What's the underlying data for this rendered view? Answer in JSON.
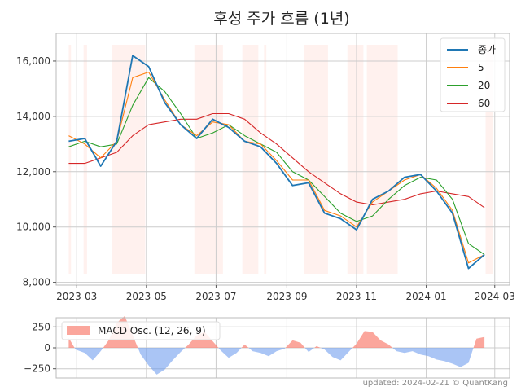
{
  "chart_data": [
    {
      "type": "line",
      "title": "후성 주가 흐름 (1년)",
      "ylim": [
        7900,
        17000
      ],
      "xlim": [
        "2023-02-11",
        "2024-03-14"
      ],
      "yticks": [
        8000,
        10000,
        12000,
        14000,
        16000
      ],
      "ytick_labels": [
        "8,000",
        "10,000",
        "12,000",
        "14,000",
        "16,000"
      ],
      "xtick_labels": [
        {
          "date": "2023-03-01",
          "label": "2023-03"
        },
        {
          "date": "2023-05-01",
          "label": "2023-05"
        },
        {
          "date": "2023-07-01",
          "label": "2023-07"
        },
        {
          "date": "2023-09-01",
          "label": "2023-09"
        },
        {
          "date": "2023-11-01",
          "label": "2023-11"
        },
        {
          "date": "2024-01-01",
          "label": "2024-01"
        },
        {
          "date": "2024-03-01",
          "label": "2024-03"
        }
      ],
      "grid": true,
      "legend_position": "top-right",
      "shaded_periods": [
        [
          "2023-02-22",
          "2023-02-24"
        ],
        [
          "2023-03-07",
          "2023-03-10"
        ],
        [
          "2023-04-01",
          "2023-04-30"
        ],
        [
          "2023-06-12",
          "2023-07-07"
        ],
        [
          "2023-07-24",
          "2023-08-07"
        ],
        [
          "2023-08-12",
          "2023-08-14"
        ],
        [
          "2023-09-16",
          "2023-10-07"
        ],
        [
          "2023-10-24",
          "2023-11-07"
        ],
        [
          "2023-11-10",
          "2023-12-07"
        ],
        [
          "2024-02-22",
          "2024-02-28"
        ]
      ],
      "shade_color": "#fff1ee",
      "dates": [
        "2023-02-22",
        "2023-03-08",
        "2023-03-22",
        "2023-04-05",
        "2023-04-19",
        "2023-05-03",
        "2023-05-17",
        "2023-05-31",
        "2023-06-14",
        "2023-06-28",
        "2023-07-12",
        "2023-07-26",
        "2023-08-09",
        "2023-08-23",
        "2023-09-06",
        "2023-09-20",
        "2023-10-04",
        "2023-10-18",
        "2023-11-01",
        "2023-11-15",
        "2023-11-29",
        "2023-12-13",
        "2023-12-27",
        "2024-01-10",
        "2024-01-24",
        "2024-02-07",
        "2024-02-21"
      ],
      "series": [
        {
          "name": "종가",
          "color": "#1f77b4",
          "width": 1.8,
          "values": [
            13100,
            13200,
            12200,
            13100,
            16200,
            15800,
            14500,
            13700,
            13200,
            13900,
            13600,
            13100,
            12900,
            12300,
            11500,
            11600,
            10500,
            10300,
            9900,
            11000,
            11300,
            11800,
            11900,
            11300,
            10500,
            8500,
            9000
          ]
        },
        {
          "name": "5",
          "color": "#ff7f0e",
          "width": 1.1,
          "values": [
            13300,
            13000,
            12500,
            13100,
            15400,
            15600,
            14600,
            13700,
            13300,
            13800,
            13700,
            13100,
            13000,
            12400,
            11700,
            11700,
            10600,
            10400,
            10000,
            10900,
            11300,
            11700,
            11900,
            11400,
            10600,
            8700,
            9000
          ]
        },
        {
          "name": "20",
          "color": "#2ca02c",
          "width": 1.1,
          "values": [
            12900,
            13100,
            12900,
            13000,
            14400,
            15400,
            14900,
            14100,
            13200,
            13400,
            13700,
            13300,
            13000,
            12700,
            12000,
            11700,
            11100,
            10500,
            10200,
            10400,
            11000,
            11500,
            11800,
            11700,
            11000,
            9400,
            9000
          ]
        },
        {
          "name": "60",
          "color": "#d62728",
          "width": 1.1,
          "values": [
            12300,
            12300,
            12500,
            12700,
            13300,
            13700,
            13800,
            13900,
            13900,
            14100,
            14100,
            13900,
            13400,
            13000,
            12500,
            12000,
            11600,
            11200,
            10900,
            10800,
            10900,
            11000,
            11200,
            11300,
            11200,
            11100,
            10700
          ]
        }
      ]
    },
    {
      "type": "area",
      "ylim": [
        -360,
        360
      ],
      "yticks": [
        250,
        0,
        -250
      ],
      "ytick_labels": [
        "250",
        "0",
        "−250"
      ],
      "series": [
        {
          "name": "MACD Osc. (12, 26, 9)",
          "pos_color": "#fa8072",
          "neg_color": "#6495ed",
          "dates": [
            "2023-02-22",
            "2023-02-28",
            "2023-03-08",
            "2023-03-15",
            "2023-03-22",
            "2023-03-29",
            "2023-04-05",
            "2023-04-12",
            "2023-04-19",
            "2023-04-26",
            "2023-05-03",
            "2023-05-10",
            "2023-05-17",
            "2023-05-24",
            "2023-05-31",
            "2023-06-07",
            "2023-06-14",
            "2023-06-21",
            "2023-06-28",
            "2023-07-05",
            "2023-07-12",
            "2023-07-19",
            "2023-07-26",
            "2023-08-02",
            "2023-08-09",
            "2023-08-16",
            "2023-08-23",
            "2023-08-30",
            "2023-09-06",
            "2023-09-13",
            "2023-09-20",
            "2023-09-27",
            "2023-10-04",
            "2023-10-11",
            "2023-10-18",
            "2023-10-25",
            "2023-11-01",
            "2023-11-08",
            "2023-11-15",
            "2023-11-22",
            "2023-11-29",
            "2023-12-06",
            "2023-12-13",
            "2023-12-20",
            "2023-12-27",
            "2024-01-03",
            "2024-01-10",
            "2024-01-17",
            "2024-01-24",
            "2024-01-31",
            "2024-02-07",
            "2024-02-14",
            "2024-02-21"
          ],
          "values": [
            120,
            -20,
            -60,
            -150,
            -40,
            90,
            300,
            380,
            150,
            -80,
            -210,
            -320,
            -260,
            -150,
            -50,
            40,
            150,
            190,
            80,
            -30,
            -120,
            -60,
            40,
            -40,
            -60,
            -100,
            -40,
            -10,
            90,
            60,
            -50,
            20,
            -20,
            -110,
            -150,
            -50,
            50,
            200,
            190,
            90,
            40,
            -40,
            -60,
            -40,
            -80,
            -100,
            -140,
            -160,
            -190,
            -230,
            -180,
            110,
            130
          ]
        }
      ]
    }
  ],
  "credit": "updated: 2024-02-21 © QuantKang"
}
